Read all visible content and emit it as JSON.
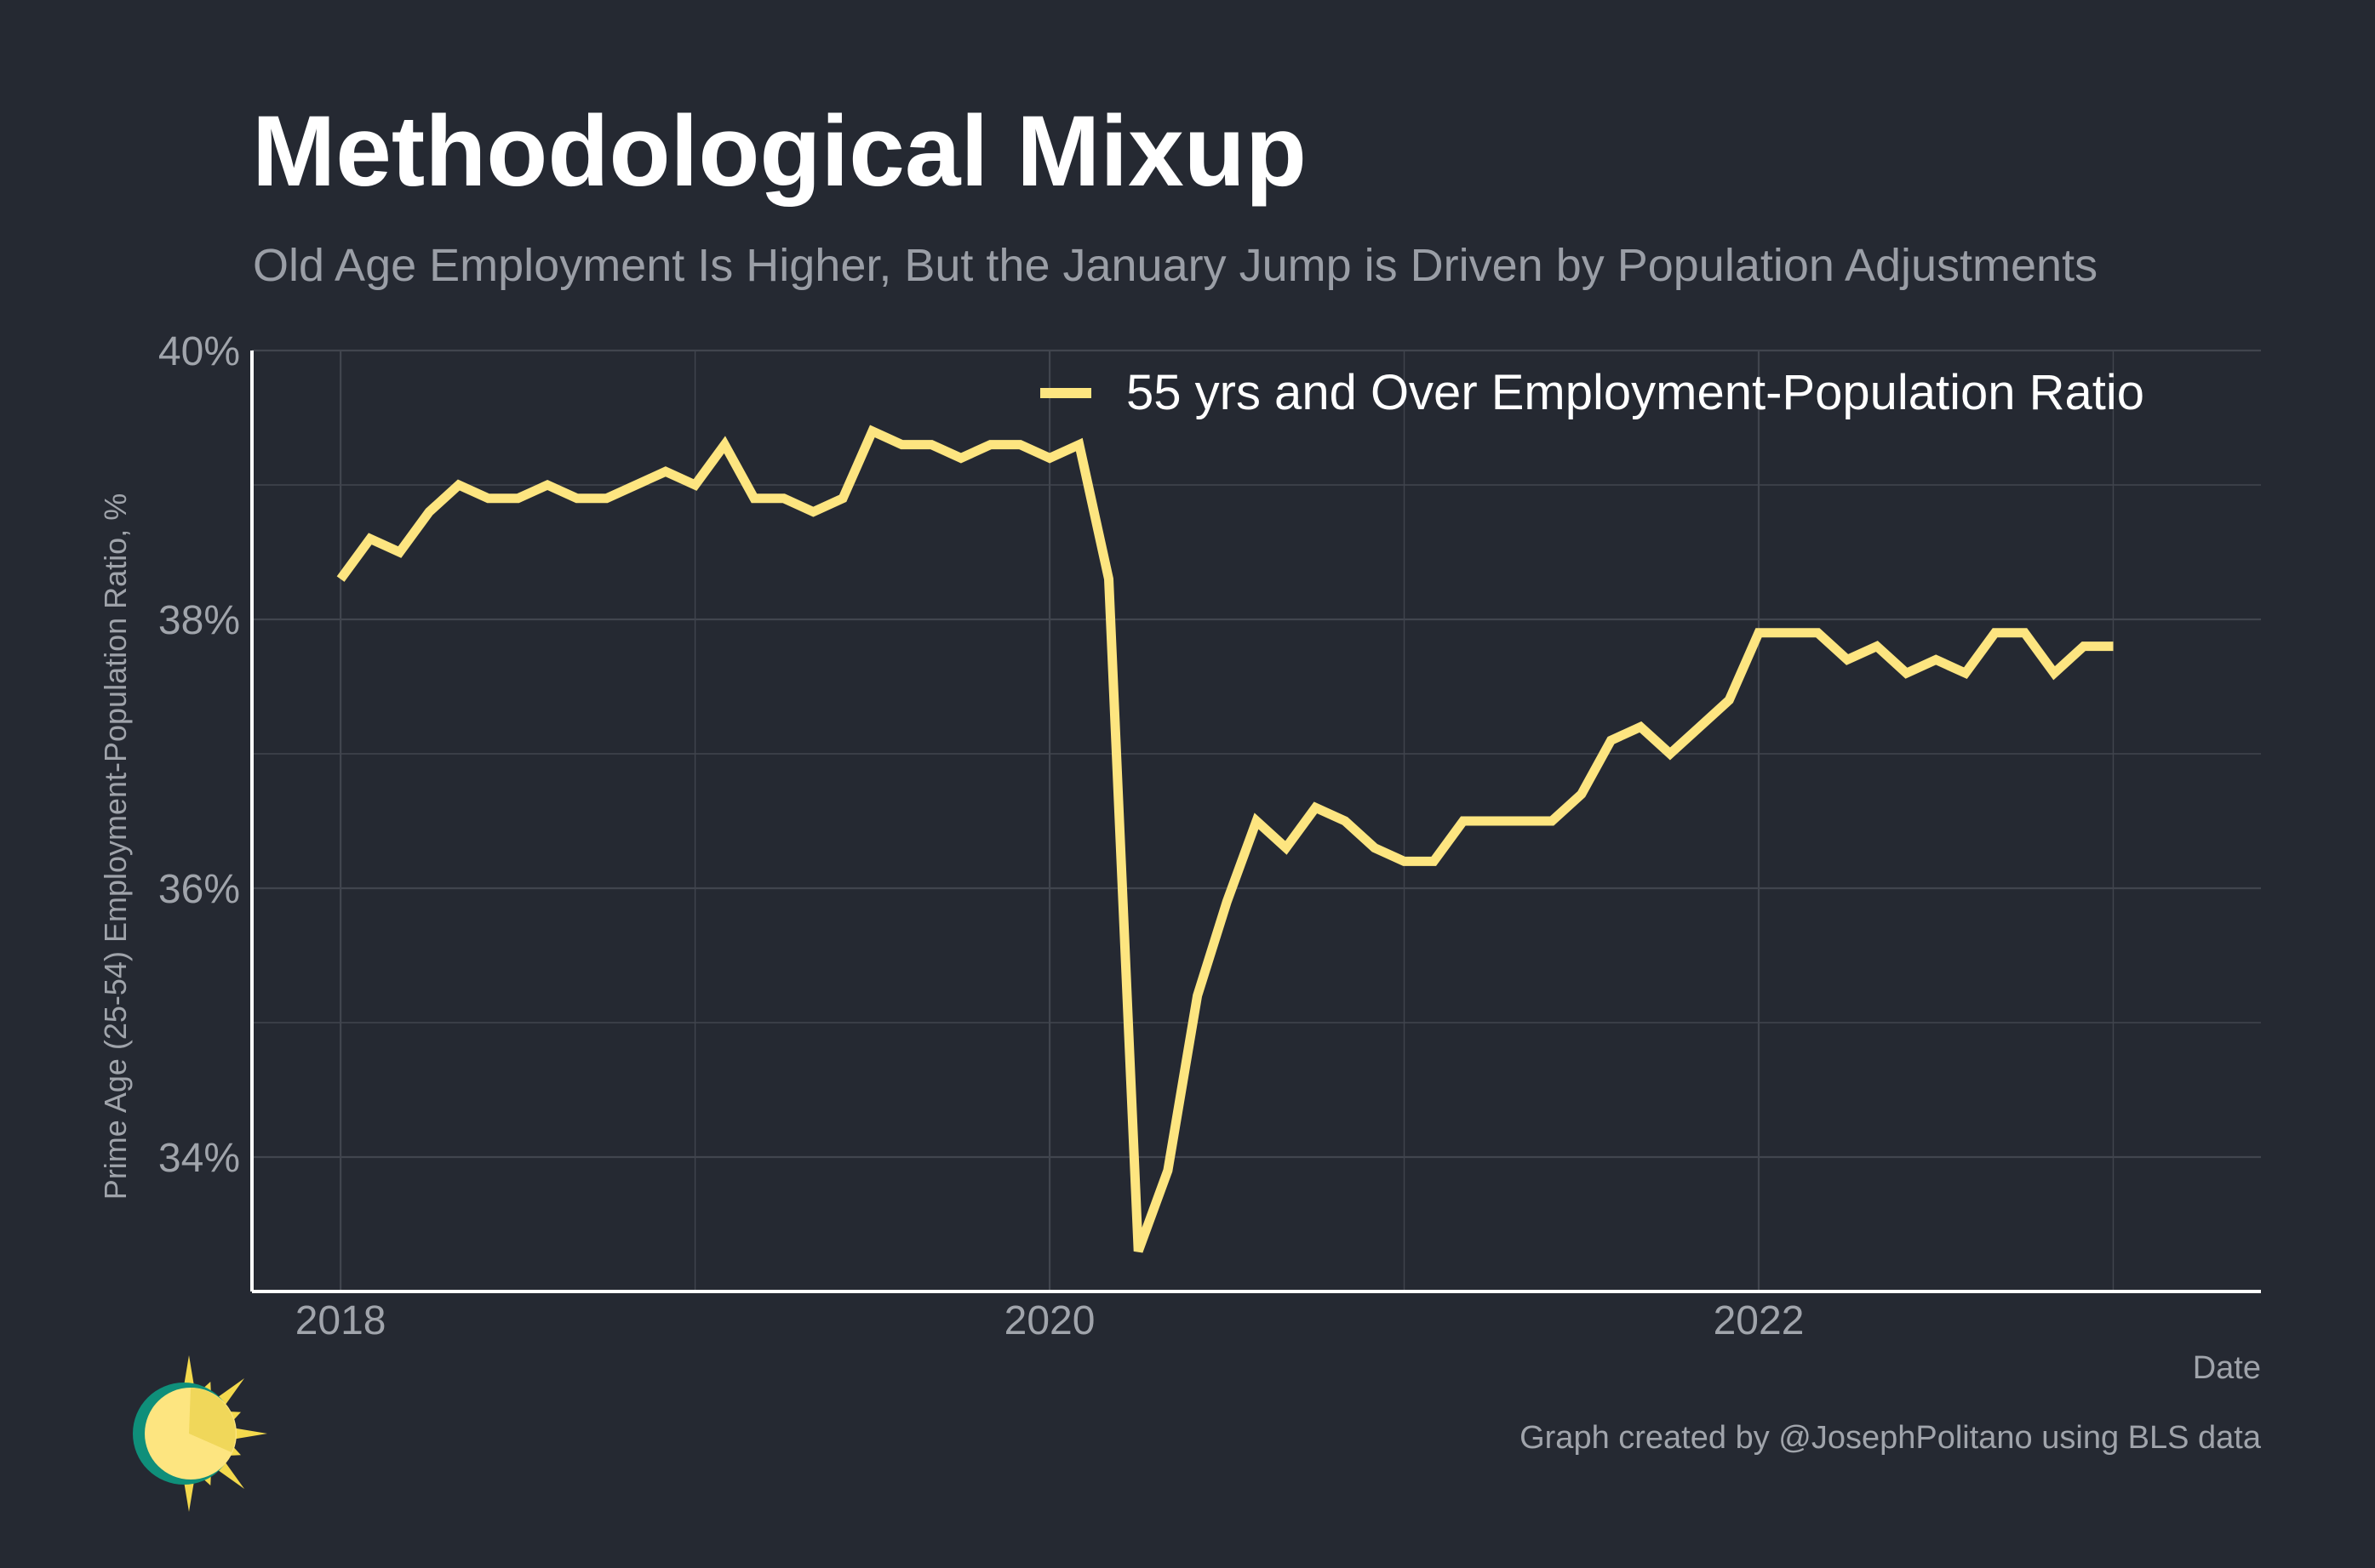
{
  "chart_data": {
    "type": "line",
    "title": "Methodological Mixup",
    "subtitle": "Old Age Employment Is Higher, But the January Jump is Driven by Population Adjustments",
    "xlabel": "Date",
    "ylabel": "Prime Age (25-54) Employment-Population Ratio, %",
    "x_ticks": [
      "2018",
      "2020",
      "2022"
    ],
    "y_ticks": [
      "34%",
      "36%",
      "38%",
      "40%"
    ],
    "xlim": [
      "2017-10",
      "2023-06"
    ],
    "ylim": [
      33.0,
      40.0
    ],
    "grid": true,
    "legend": "top-right",
    "caption": "Graph created by @JosephPolitano using BLS data",
    "colors": {
      "background": "#252932",
      "series": "#fde580",
      "grid": "#41454e",
      "axis": "#ffffff"
    },
    "series": [
      {
        "name": "55 yrs and Over Employment-Population Ratio",
        "x": [
          "2018-01",
          "2018-02",
          "2018-03",
          "2018-04",
          "2018-05",
          "2018-06",
          "2018-07",
          "2018-08",
          "2018-09",
          "2018-10",
          "2018-11",
          "2018-12",
          "2019-01",
          "2019-02",
          "2019-03",
          "2019-04",
          "2019-05",
          "2019-06",
          "2019-07",
          "2019-08",
          "2019-09",
          "2019-10",
          "2019-11",
          "2019-12",
          "2020-01",
          "2020-02",
          "2020-03",
          "2020-04",
          "2020-05",
          "2020-06",
          "2020-07",
          "2020-08",
          "2020-09",
          "2020-10",
          "2020-11",
          "2020-12",
          "2021-01",
          "2021-02",
          "2021-03",
          "2021-04",
          "2021-05",
          "2021-06",
          "2021-07",
          "2021-08",
          "2021-09",
          "2021-10",
          "2021-11",
          "2021-12",
          "2022-01",
          "2022-02",
          "2022-03",
          "2022-04",
          "2022-05",
          "2022-06",
          "2022-07",
          "2022-08",
          "2022-09",
          "2022-10",
          "2022-11",
          "2022-12",
          "2023-01"
        ],
        "values": [
          38.3,
          38.6,
          38.5,
          38.8,
          39.0,
          38.9,
          38.9,
          39.0,
          38.9,
          38.9,
          39.0,
          39.1,
          39.0,
          39.3,
          38.9,
          38.9,
          38.8,
          38.9,
          39.4,
          39.3,
          39.3,
          39.2,
          39.3,
          39.3,
          39.2,
          39.3,
          38.3,
          33.3,
          33.9,
          35.2,
          35.9,
          36.5,
          36.3,
          36.6,
          36.5,
          36.3,
          36.2,
          36.2,
          36.5,
          36.5,
          36.5,
          36.5,
          36.7,
          37.1,
          37.2,
          37.0,
          37.2,
          37.4,
          37.9,
          37.9,
          37.9,
          37.7,
          37.8,
          37.6,
          37.7,
          37.6,
          37.9,
          37.9,
          37.6,
          37.8,
          37.8
        ]
      }
    ]
  }
}
